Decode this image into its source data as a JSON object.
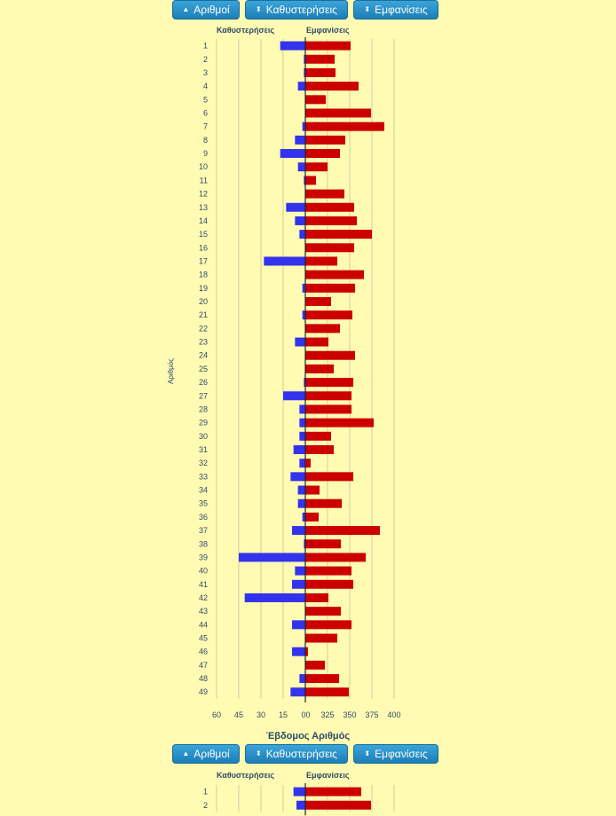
{
  "toolbar": {
    "numbers_label": "Αριθμοί",
    "delays_label": "Καθυστερήσεις",
    "appearances_label": "Εμφανίσεις"
  },
  "headers": {
    "delays": "Καθυστερήσεις",
    "appearances": "Εμφανίσεις"
  },
  "y_axis_label": "Αριθμός",
  "section2": {
    "title": "Έβδομος Αριθμός"
  },
  "colors": {
    "delays": "#3333ee",
    "appearances": "#cc0000",
    "background": "#fffbb3",
    "button": "#1d7fb8"
  },
  "chart_data": [
    {
      "type": "bar",
      "orientation": "horizontal",
      "categories": [
        "1",
        "2",
        "3",
        "4",
        "5",
        "6",
        "7",
        "8",
        "9",
        "10",
        "11",
        "12",
        "13",
        "14",
        "15",
        "16",
        "17",
        "18",
        "19",
        "20",
        "21",
        "22",
        "23",
        "24",
        "25",
        "26",
        "27",
        "28",
        "29",
        "30",
        "31",
        "32",
        "33",
        "34",
        "35",
        "36",
        "37",
        "38",
        "39",
        "40",
        "41",
        "42",
        "43",
        "44",
        "45",
        "46",
        "47",
        "48",
        "49"
      ],
      "left_ticks": [
        "60",
        "45",
        "30",
        "15",
        "0"
      ],
      "right_ticks": [
        "0",
        "325",
        "350",
        "375",
        "400"
      ],
      "series": [
        {
          "name": "Καθυστερήσεις",
          "side": "left",
          "values": [
            17,
            1,
            1,
            5,
            0,
            0,
            2,
            7,
            17,
            5,
            1,
            0,
            13,
            7,
            4,
            0,
            28,
            0,
            2,
            0,
            2,
            0,
            7,
            0,
            0,
            1,
            15,
            4,
            4,
            4,
            8,
            4,
            10,
            5,
            5,
            2,
            9,
            1,
            45,
            7,
            9,
            41,
            0,
            9,
            0,
            9,
            0,
            4,
            10
          ]
        },
        {
          "name": "Εμφανίσεις",
          "side": "right",
          "values": [
            351,
            333,
            334,
            360,
            323,
            374,
            389,
            345,
            339,
            325,
            312,
            344,
            355,
            358,
            375,
            355,
            336,
            366,
            356,
            329,
            353,
            339,
            326,
            356,
            332,
            354,
            352,
            352,
            377,
            329,
            332,
            306,
            354,
            316,
            341,
            315,
            384,
            340,
            368,
            352,
            354,
            326,
            340,
            352,
            336,
            303,
            322,
            338,
            349
          ]
        }
      ]
    },
    {
      "type": "bar",
      "orientation": "horizontal",
      "title": "Έβδομος Αριθμός",
      "categories": [
        "1",
        "2"
      ],
      "series": [
        {
          "name": "Καθυστερήσεις",
          "side": "left",
          "values": [
            8,
            6
          ]
        },
        {
          "name": "Εμφανίσεις",
          "side": "right",
          "values": [
            363,
            374
          ]
        }
      ]
    }
  ]
}
